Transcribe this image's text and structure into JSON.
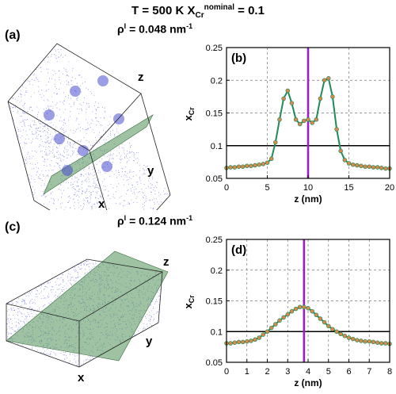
{
  "header": {
    "title_prefix": "T = 500 K    X",
    "title_sub": "Cr",
    "title_sup": "nominal",
    "title_suffix": " = 0.1"
  },
  "panels": {
    "a": {
      "label": "(a)",
      "rho_prefix": "ρ",
      "rho_sup": "I",
      "rho_suffix": " = 0.048 nm",
      "rho_unit_sup": "-1",
      "axis_x": "x",
      "axis_y": "y",
      "axis_z": "z"
    },
    "c": {
      "label": "(c)",
      "rho_prefix": "ρ",
      "rho_sup": "I",
      "rho_suffix": " = 0.124 nm",
      "rho_unit_sup": "-1",
      "axis_x": "x",
      "axis_y": "y",
      "axis_z": "z"
    }
  },
  "colors": {
    "curve": "#1f8a5a",
    "marker": "#d98a4a",
    "interface": "#9b1fc4",
    "reference": "#000000",
    "atoms": "#5a5fd8",
    "plane": "#4f8f55"
  },
  "chart_data": [
    {
      "type": "line",
      "panel_label": "(b)",
      "xlabel": "z (nm)",
      "ylabel_main": "x",
      "ylabel_sub": "Cr",
      "xlim": [
        0,
        20
      ],
      "ylim": [
        0.05,
        0.25
      ],
      "xticks": [
        0,
        5,
        10,
        15,
        20
      ],
      "yticks": [
        0.05,
        0.1,
        0.15,
        0.2,
        0.25
      ],
      "ytick_labels": [
        "0.05",
        "0.1",
        "0.15",
        "0.2",
        "0.25"
      ],
      "grid": true,
      "reference_y": 0.1,
      "interface_x": 10,
      "series": [
        {
          "x": [
            0.0,
            0.5,
            1.0,
            1.5,
            2.0,
            2.5,
            3.0,
            3.5,
            4.0,
            4.5,
            5.0,
            5.5,
            6.0,
            6.5,
            7.0,
            7.5,
            8.0,
            8.5,
            9.0,
            9.5,
            10.0,
            10.5,
            11.0,
            11.5,
            12.0,
            12.5,
            13.0,
            13.5,
            14.0,
            14.5,
            15.0,
            15.5,
            16.0,
            16.5,
            17.0,
            17.5,
            18.0,
            18.5,
            19.0,
            19.5,
            20.0
          ],
          "y": [
            0.066,
            0.067,
            0.067,
            0.068,
            0.068,
            0.069,
            0.069,
            0.07,
            0.071,
            0.072,
            0.074,
            0.08,
            0.105,
            0.14,
            0.172,
            0.184,
            0.165,
            0.14,
            0.133,
            0.138,
            0.14,
            0.135,
            0.14,
            0.172,
            0.2,
            0.203,
            0.175,
            0.125,
            0.092,
            0.078,
            0.073,
            0.071,
            0.07,
            0.069,
            0.068,
            0.068,
            0.067,
            0.067,
            0.066,
            0.065,
            0.065
          ]
        }
      ]
    },
    {
      "type": "line",
      "panel_label": "(d)",
      "xlabel": "z (nm)",
      "ylabel_main": "x",
      "ylabel_sub": "Cr",
      "xlim": [
        0,
        8
      ],
      "ylim": [
        0.05,
        0.25
      ],
      "xticks": [
        0,
        1,
        2,
        3,
        4,
        5,
        6,
        7,
        8
      ],
      "yticks": [
        0.05,
        0.1,
        0.15,
        0.2,
        0.25
      ],
      "ytick_labels": [
        "0.05",
        "0.1",
        "0.15",
        "0.2",
        "0.25"
      ],
      "grid": true,
      "reference_y": 0.1,
      "interface_x": 3.8,
      "series": [
        {
          "x": [
            0.0,
            0.2,
            0.4,
            0.6,
            0.8,
            1.0,
            1.2,
            1.4,
            1.6,
            1.8,
            2.0,
            2.2,
            2.4,
            2.6,
            2.8,
            3.0,
            3.2,
            3.4,
            3.6,
            3.8,
            4.0,
            4.2,
            4.4,
            4.6,
            4.8,
            5.0,
            5.2,
            5.4,
            5.6,
            5.8,
            6.0,
            6.2,
            6.4,
            6.6,
            6.8,
            7.0,
            7.2,
            7.4,
            7.6,
            7.8,
            8.0
          ],
          "y": [
            0.081,
            0.081,
            0.082,
            0.083,
            0.083,
            0.084,
            0.085,
            0.087,
            0.09,
            0.095,
            0.1,
            0.106,
            0.112,
            0.118,
            0.123,
            0.128,
            0.133,
            0.137,
            0.14,
            0.14,
            0.138,
            0.133,
            0.127,
            0.121,
            0.115,
            0.109,
            0.104,
            0.1,
            0.096,
            0.093,
            0.09,
            0.088,
            0.086,
            0.085,
            0.084,
            0.084,
            0.083,
            0.082,
            0.081,
            0.081,
            0.08
          ]
        }
      ]
    }
  ]
}
